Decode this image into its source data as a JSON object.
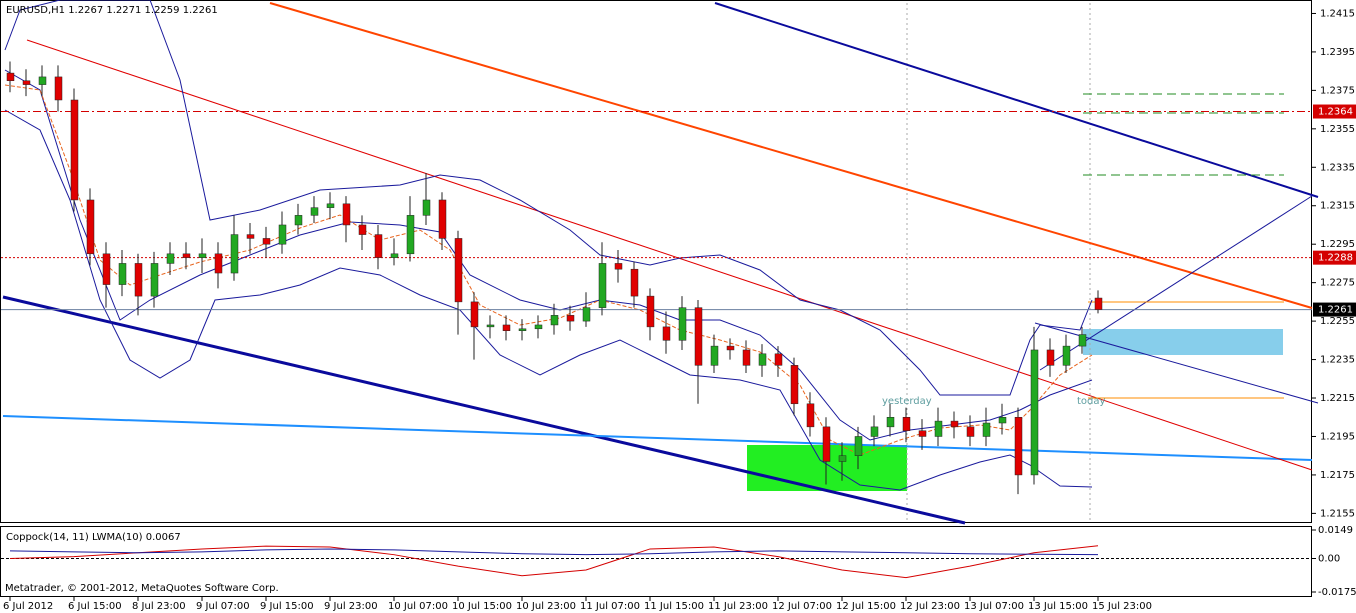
{
  "title": "EURUSD,H1  1.2267 1.2271 1.2259 1.2261",
  "footer": "Metatrader, © 2001-2012, MetaQuotes Software Corp.",
  "chart_data": [
    {
      "type": "candlestick",
      "categories": [
        "6 Jul 2012",
        null,
        null,
        null,
        "6 Jul 15:00",
        null,
        null,
        null,
        "8 Jul 23:00",
        null,
        null,
        null,
        "9 Jul 07:00",
        null,
        null,
        null,
        "9 Jul 15:00",
        null,
        null,
        null,
        "9 Jul 23:00",
        null,
        null,
        null,
        "10 Jul 07:00",
        null,
        null,
        null,
        "10 Jul 15:00",
        null,
        null,
        null,
        "10 Jul 23:00",
        null,
        null,
        null,
        "11 Jul 07:00",
        null,
        null,
        null,
        "11 Jul 15:00",
        null,
        null,
        null,
        "11 Jul 23:00",
        null,
        null,
        null,
        "12 Jul 07:00",
        null,
        null,
        null,
        "12 Jul 15:00",
        null,
        null,
        null,
        "12 Jul 23:00",
        null,
        null,
        null,
        "13 Jul 07:00",
        null,
        null,
        null,
        "13 Jul 15:00",
        null,
        null,
        null,
        "15 Jul 23:00"
      ],
      "open": [
        1.2384,
        1.238,
        1.2378,
        1.2382,
        1.237,
        1.2318,
        1.229,
        1.2274,
        1.2285,
        1.2268,
        1.2285,
        1.229,
        1.2288,
        1.229,
        1.228,
        1.23,
        1.2298,
        1.2295,
        1.2305,
        1.231,
        1.2314,
        1.2316,
        1.2305,
        1.23,
        1.2288,
        1.229,
        1.231,
        1.2318,
        1.2298,
        1.2265,
        1.2252,
        1.2253,
        1.225,
        1.2251,
        1.2253,
        1.2258,
        1.2255,
        1.2262,
        1.2285,
        1.2282,
        1.2268,
        1.2252,
        1.2245,
        1.2262,
        1.2232,
        1.2242,
        1.224,
        1.2232,
        1.2238,
        1.2232,
        1.2212,
        1.22,
        1.2182,
        1.2185,
        1.2195,
        1.22,
        1.2205,
        1.2198,
        1.2195,
        1.2203,
        1.22,
        1.2195,
        1.2202,
        1.2205,
        1.2175,
        1.224,
        1.2232,
        1.2242,
        1.2267
      ],
      "high": [
        1.239,
        1.2386,
        1.2388,
        1.2388,
        1.2376,
        1.2324,
        1.2296,
        1.2292,
        1.229,
        1.2291,
        1.2296,
        1.2296,
        1.2298,
        1.2296,
        1.231,
        1.2306,
        1.2304,
        1.2312,
        1.2316,
        1.232,
        1.2322,
        1.232,
        1.231,
        1.2305,
        1.2298,
        1.232,
        1.2332,
        1.2322,
        1.2302,
        1.227,
        1.2258,
        1.2258,
        1.2256,
        1.2258,
        1.2264,
        1.2263,
        1.227,
        1.2296,
        1.2292,
        1.2286,
        1.2272,
        1.226,
        1.2268,
        1.2266,
        1.2248,
        1.2246,
        1.2245,
        1.2243,
        1.2242,
        1.2236,
        1.2218,
        1.2205,
        1.2192,
        1.22,
        1.2206,
        1.2212,
        1.221,
        1.2204,
        1.221,
        1.2208,
        1.2206,
        1.221,
        1.2212,
        1.221,
        1.2252,
        1.2246,
        1.2248,
        1.2252,
        1.2271
      ],
      "low": [
        1.2374,
        1.2372,
        1.2372,
        1.2364,
        1.2312,
        1.2284,
        1.2262,
        1.2268,
        1.2258,
        1.2262,
        1.2279,
        1.2282,
        1.228,
        1.2272,
        1.2276,
        1.229,
        1.2288,
        1.229,
        1.23,
        1.2306,
        1.2308,
        1.2296,
        1.2292,
        1.2282,
        1.2284,
        1.2286,
        1.2305,
        1.2292,
        1.2248,
        1.2235,
        1.2246,
        1.2245,
        1.2245,
        1.2246,
        1.2248,
        1.225,
        1.2252,
        1.2258,
        1.2275,
        1.2262,
        1.2245,
        1.2238,
        1.224,
        1.2212,
        1.2228,
        1.2235,
        1.2228,
        1.2226,
        1.2226,
        1.2206,
        1.2195,
        1.217,
        1.2172,
        1.2178,
        1.219,
        1.2195,
        1.2192,
        1.2188,
        1.219,
        1.2194,
        1.219,
        1.219,
        1.2196,
        1.2165,
        1.217,
        1.2226,
        1.2228,
        1.2238,
        1.2259
      ],
      "close": [
        1.238,
        1.2378,
        1.2382,
        1.237,
        1.2318,
        1.229,
        1.2274,
        1.2285,
        1.2268,
        1.2285,
        1.229,
        1.2288,
        1.229,
        1.228,
        1.23,
        1.2298,
        1.2295,
        1.2305,
        1.231,
        1.2314,
        1.2316,
        1.2305,
        1.23,
        1.2288,
        1.229,
        1.231,
        1.2318,
        1.2298,
        1.2265,
        1.2252,
        1.2253,
        1.225,
        1.2251,
        1.2253,
        1.2258,
        1.2255,
        1.2262,
        1.2285,
        1.2282,
        1.2268,
        1.2252,
        1.2245,
        1.2262,
        1.2232,
        1.2242,
        1.224,
        1.2232,
        1.2238,
        1.2232,
        1.2212,
        1.22,
        1.2182,
        1.2185,
        1.2195,
        1.22,
        1.2205,
        1.2198,
        1.2195,
        1.2203,
        1.22,
        1.2195,
        1.2202,
        1.2205,
        1.2175,
        1.224,
        1.2232,
        1.2242,
        1.2248,
        1.2261
      ],
      "up_color": "#22a822",
      "down_color": "#e00000",
      "ylim": [
        1.215,
        1.2422
      ],
      "yticks": [
        1.2415,
        1.2395,
        1.2375,
        1.2355,
        1.2335,
        1.2315,
        1.2295,
        1.2275,
        1.2255,
        1.2235,
        1.2215,
        1.2195,
        1.2175,
        1.2155
      ],
      "levels": [
        {
          "value": 1.2364,
          "color": "#d40000",
          "style": "dashdot"
        },
        {
          "value": 1.2288,
          "color": "#d40000",
          "style": "dotted"
        },
        {
          "value": 1.2261,
          "color": "#000000",
          "style": "solid"
        }
      ],
      "annotations": [
        "yesterday",
        "today"
      ]
    },
    {
      "type": "line",
      "title": "Coppock(14, 11) LWMA(10) 0.0067",
      "series": [
        {
          "color": "#d40000",
          "values": [
            0.0,
            0.001,
            0.003,
            0.005,
            0.0065,
            0.006,
            0.002,
            -0.004,
            -0.009,
            -0.006,
            0.005,
            0.006,
            0.001,
            -0.006,
            -0.01,
            -0.004,
            0.003,
            0.0067
          ]
        },
        {
          "color": "#1a1a9c",
          "values": [
            0.004,
            0.0035,
            0.003,
            0.0035,
            0.0045,
            0.005,
            0.0045,
            0.0035,
            0.0025,
            0.002,
            0.0025,
            0.0035,
            0.004,
            0.0035,
            0.003,
            0.0025,
            0.0022,
            0.002
          ]
        }
      ],
      "ylim": [
        -0.0175,
        0.0149
      ],
      "yticks": [
        0.0149,
        {
          "value": 0,
          "label": "0.00"
        },
        -0.0175
      ]
    }
  ]
}
